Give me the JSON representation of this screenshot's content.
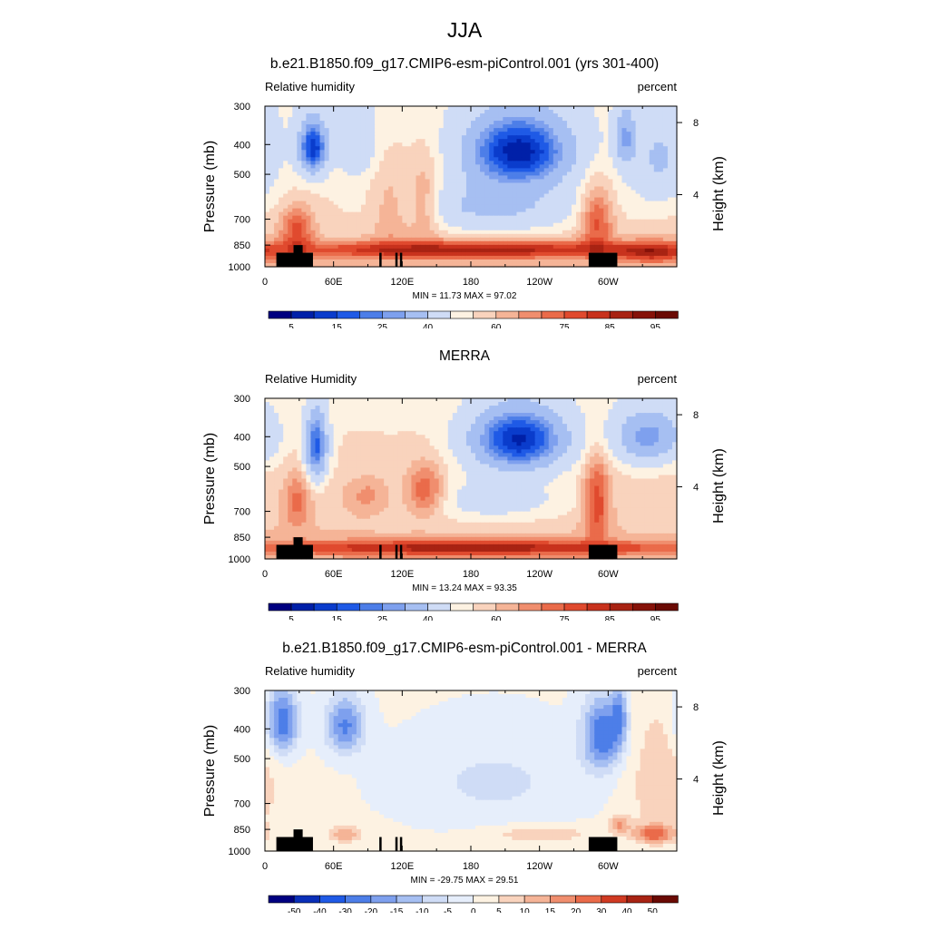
{
  "figure_title": "JJA",
  "colors": {
    "rh_levels": [
      5,
      10,
      15,
      20,
      25,
      30,
      40,
      50,
      55,
      60,
      65,
      70,
      75,
      80,
      85,
      90,
      95
    ],
    "rh_palette": [
      "#000080",
      "#0020a8",
      "#0a3ccc",
      "#1f5ae6",
      "#4d7ee8",
      "#7ea0ee",
      "#a6bff2",
      "#cfdcf6",
      "#fdf2e2",
      "#f9d3bd",
      "#f5b497",
      "#f08e6e",
      "#ea6b4a",
      "#e04a2e",
      "#c8321d",
      "#a82313",
      "#861209",
      "#6a0a04"
    ],
    "diff_levels": [
      -50,
      -40,
      -30,
      -20,
      -15,
      -10,
      -5,
      0,
      5,
      10,
      15,
      20,
      30,
      40,
      50
    ],
    "diff_palette": [
      "#000080",
      "#0a2fb8",
      "#1f5ae6",
      "#4d7ee8",
      "#7ea0ee",
      "#a6bff2",
      "#cfdcf6",
      "#e6eefb",
      "#fdf2e2",
      "#f9d3bd",
      "#f5b497",
      "#f08e6e",
      "#ea6b4a",
      "#d03a22",
      "#a82313",
      "#6a0a04"
    ],
    "terrain": "#000000"
  },
  "panels": [
    {
      "title": "b.e21.B1850.f09_g17.CMIP6-esm-piControl.001 (yrs 301-400)",
      "var_label": "Relative humidity",
      "units": "percent",
      "stats": "MIN =  11.73  MAX =  97.02",
      "colorbar_labels": [
        "5",
        "15",
        "25",
        "40",
        "60",
        "75",
        "85",
        "95"
      ]
    },
    {
      "title": "MERRA",
      "var_label": "Relative Humidity",
      "units": "percent",
      "stats": "MIN =  13.24  MAX =  93.35",
      "colorbar_labels": [
        "5",
        "15",
        "25",
        "40",
        "60",
        "75",
        "85",
        "95"
      ]
    },
    {
      "title": "b.e21.B1850.f09_g17.CMIP6-esm-piControl.001 - MERRA",
      "var_label": "Relative humidity",
      "units": "percent",
      "stats": "MIN = -29.75  MAX =  29.51",
      "colorbar_labels": [
        "-50",
        "-40",
        "-30",
        "-20",
        "-15",
        "-10",
        "-5",
        "0",
        "5",
        "10",
        "15",
        "20",
        "30",
        "40",
        "50"
      ]
    }
  ],
  "chart_data": [
    {
      "type": "heatmap",
      "title": "b.e21.B1850.f09_g17.CMIP6-esm-piControl.001 (yrs 301-400)",
      "xlabel": "",
      "ylabel": "Pressure (mb)",
      "y2label": "Height (km)",
      "x_ticks": [
        "0",
        "60E",
        "120E",
        "180",
        "120W",
        "60W"
      ],
      "x_tick_values": [
        0,
        60,
        120,
        180,
        240,
        300
      ],
      "xlim": [
        0,
        360
      ],
      "y_ticks": [
        "300",
        "400",
        "500",
        "700",
        "850",
        "1000"
      ],
      "ylim": [
        1000,
        300
      ],
      "y2_ticks": [
        "8",
        "4"
      ],
      "min": 11.73,
      "max": 97.02,
      "base": 60,
      "features": [
        {
          "lon": 42,
          "p": 410,
          "slon": 9,
          "sp": 60,
          "amp": -42
        },
        {
          "lon": 222,
          "p": 420,
          "slon": 32,
          "sp": 80,
          "amp": -46
        },
        {
          "lon": 315,
          "p": 380,
          "slon": 6,
          "sp": 60,
          "amp": -22
        },
        {
          "lon": 345,
          "p": 450,
          "slon": 18,
          "sp": 110,
          "amp": -15
        },
        {
          "lon": 80,
          "p": 400,
          "slon": 12,
          "sp": 70,
          "amp": -12
        },
        {
          "lon": 140,
          "p": 620,
          "slon": 10,
          "sp": 140,
          "amp": 14
        },
        {
          "lon": 110,
          "p": 650,
          "slon": 12,
          "sp": 150,
          "amp": 10
        },
        {
          "lon": 180,
          "p": 880,
          "slon": 120,
          "sp": 40,
          "amp": 30
        },
        {
          "lon": 290,
          "p": 700,
          "slon": 10,
          "sp": 120,
          "amp": 22
        },
        {
          "lon": 28,
          "p": 760,
          "slon": 10,
          "sp": 90,
          "amp": 20
        },
        {
          "lon": 200,
          "p": 640,
          "slon": 55,
          "sp": 90,
          "amp": -18
        },
        {
          "lon": 340,
          "p": 900,
          "slon": 22,
          "sp": 50,
          "amp": 20
        }
      ]
    },
    {
      "type": "heatmap",
      "title": "MERRA",
      "xlabel": "",
      "ylabel": "Pressure (mb)",
      "y2label": "Height (km)",
      "x_ticks": [
        "0",
        "60E",
        "120E",
        "180",
        "120W",
        "60W"
      ],
      "x_tick_values": [
        0,
        60,
        120,
        180,
        240,
        300
      ],
      "xlim": [
        0,
        360
      ],
      "y_ticks": [
        "300",
        "400",
        "500",
        "700",
        "850",
        "1000"
      ],
      "ylim": [
        1000,
        300
      ],
      "y2_ticks": [
        "8",
        "4"
      ],
      "min": 13.24,
      "max": 93.35,
      "base": 62,
      "features": [
        {
          "lon": 45,
          "p": 430,
          "slon": 7,
          "sp": 80,
          "amp": -38
        },
        {
          "lon": 222,
          "p": 410,
          "slon": 30,
          "sp": 70,
          "amp": -46
        },
        {
          "lon": 335,
          "p": 400,
          "slon": 22,
          "sp": 60,
          "amp": -28
        },
        {
          "lon": 140,
          "p": 600,
          "slon": 12,
          "sp": 80,
          "amp": 20
        },
        {
          "lon": 90,
          "p": 620,
          "slon": 14,
          "sp": 60,
          "amp": 10
        },
        {
          "lon": 28,
          "p": 650,
          "slon": 8,
          "sp": 100,
          "amp": 14
        },
        {
          "lon": 180,
          "p": 920,
          "slon": 130,
          "sp": 35,
          "amp": 28
        },
        {
          "lon": 290,
          "p": 650,
          "slon": 8,
          "sp": 150,
          "amp": 22
        },
        {
          "lon": 200,
          "p": 650,
          "slon": 50,
          "sp": 80,
          "amp": -12
        }
      ]
    },
    {
      "type": "heatmap",
      "title": "b.e21.B1850.f09_g17.CMIP6-esm-piControl.001 - MERRA",
      "xlabel": "",
      "ylabel": "Pressure (mb)",
      "y2label": "Height (km)",
      "x_ticks": [
        "0",
        "60E",
        "120E",
        "180",
        "120W",
        "60W"
      ],
      "x_tick_values": [
        0,
        60,
        120,
        180,
        240,
        300
      ],
      "xlim": [
        0,
        360
      ],
      "y_ticks": [
        "300",
        "400",
        "500",
        "700",
        "850",
        "1000"
      ],
      "ylim": [
        1000,
        300
      ],
      "y2_ticks": [
        "8",
        "4"
      ],
      "min": -29.75,
      "max": 29.51,
      "base": 1,
      "features": [
        {
          "lon": 15,
          "p": 380,
          "slon": 10,
          "sp": 70,
          "amp": -26
        },
        {
          "lon": 70,
          "p": 390,
          "slon": 12,
          "sp": 60,
          "amp": -22
        },
        {
          "lon": 295,
          "p": 420,
          "slon": 12,
          "sp": 80,
          "amp": -26
        },
        {
          "lon": 310,
          "p": 360,
          "slon": 5,
          "sp": 60,
          "amp": -16
        },
        {
          "lon": 200,
          "p": 600,
          "slon": 60,
          "sp": 150,
          "amp": -7
        },
        {
          "lon": 70,
          "p": 880,
          "slon": 10,
          "sp": 40,
          "amp": 13
        },
        {
          "lon": 240,
          "p": 880,
          "slon": 30,
          "sp": 40,
          "amp": 9
        },
        {
          "lon": 340,
          "p": 880,
          "slon": 12,
          "sp": 40,
          "amp": 22
        },
        {
          "lon": 310,
          "p": 820,
          "slon": 6,
          "sp": 40,
          "amp": 14
        },
        {
          "lon": 345,
          "p": 600,
          "slon": 20,
          "sp": 200,
          "amp": 8
        }
      ]
    }
  ]
}
